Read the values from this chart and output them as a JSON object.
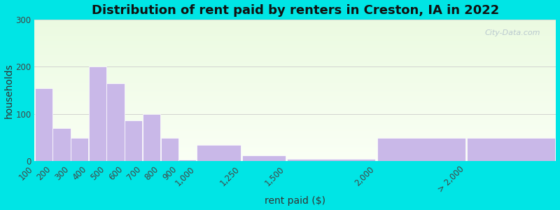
{
  "title": "Distribution of rent paid by renters in Creston, IA in 2022",
  "xlabel": "rent paid ($)",
  "ylabel": "households",
  "bar_color": "#c9b8e8",
  "bar_edgecolor": "#ffffff",
  "bin_lefts": [
    100,
    200,
    300,
    400,
    500,
    600,
    700,
    800,
    900,
    1000,
    1250,
    1500,
    2000,
    2500
  ],
  "bin_rights": [
    200,
    300,
    400,
    500,
    600,
    700,
    800,
    900,
    1000,
    1250,
    1500,
    2000,
    2500,
    3000
  ],
  "values": [
    155,
    70,
    50,
    200,
    165,
    87,
    100,
    50,
    3,
    35,
    13,
    5,
    50,
    50
  ],
  "tick_positions": [
    100,
    200,
    300,
    400,
    500,
    600,
    700,
    800,
    900,
    1000,
    1250,
    1500,
    2000,
    2500
  ],
  "tick_labels": [
    "100",
    "200",
    "300",
    "400",
    "500",
    "600",
    "700",
    "800",
    "900",
    "1,000",
    "1,250",
    "1,500",
    "2,000",
    "> 2,000"
  ],
  "xlim": [
    100,
    3000
  ],
  "ylim": [
    0,
    300
  ],
  "yticks": [
    0,
    100,
    200,
    300
  ],
  "title_fontsize": 13,
  "axis_fontsize": 10,
  "tick_fontsize": 8.5,
  "bg_outer": "#00e5e5",
  "watermark": "City-Data.com"
}
